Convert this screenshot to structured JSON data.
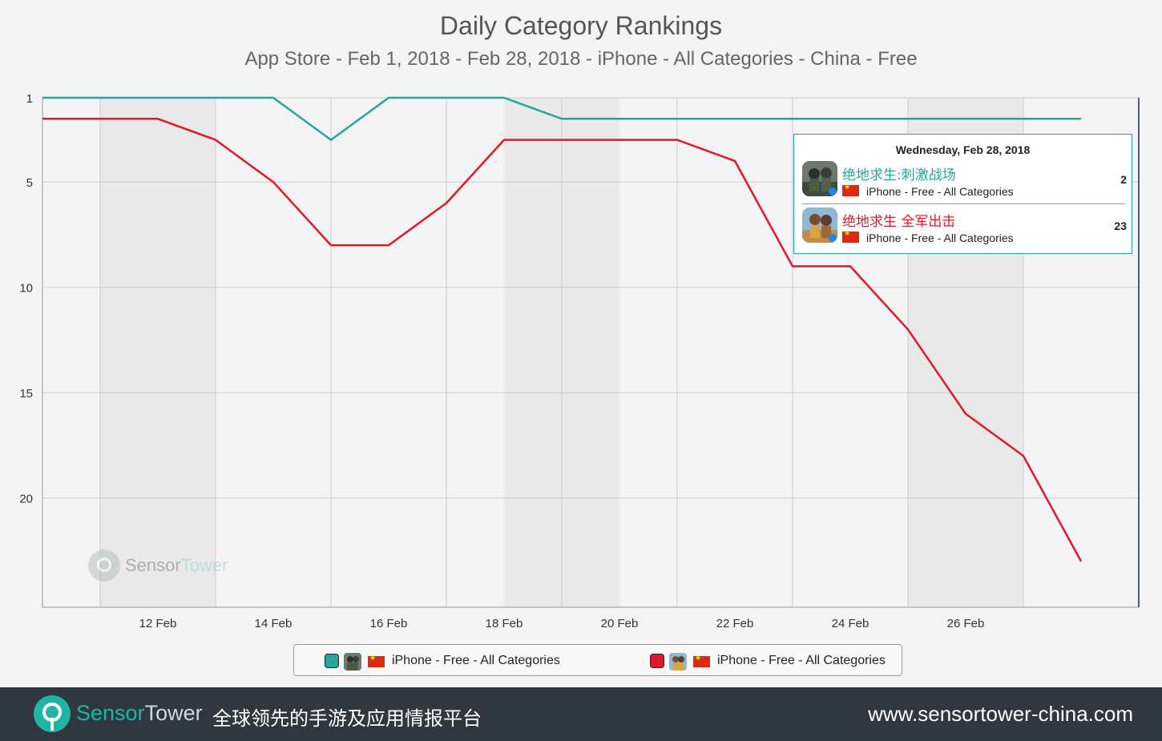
{
  "header": {
    "title": "Daily Category Rankings",
    "subtitle": "App Store - Feb 1, 2018 - Feb 28, 2018 - iPhone - All Categories - China - Free"
  },
  "chart_data": {
    "type": "line",
    "x": [
      "10 Feb",
      "11 Feb",
      "12 Feb",
      "13 Feb",
      "14 Feb",
      "15 Feb",
      "16 Feb",
      "17 Feb",
      "18 Feb",
      "19 Feb",
      "20 Feb",
      "21 Feb",
      "22 Feb",
      "23 Feb",
      "24 Feb",
      "25 Feb",
      "26 Feb",
      "27 Feb",
      "28 Feb"
    ],
    "x_tick_labels": [
      "12 Feb",
      "14 Feb",
      "16 Feb",
      "18 Feb",
      "20 Feb",
      "22 Feb",
      "24 Feb",
      "26 Feb"
    ],
    "y_tick_labels": [
      "1",
      "5",
      "10",
      "15",
      "20"
    ],
    "y_ticks": [
      1,
      5,
      10,
      15,
      20
    ],
    "ylim": [
      24.3,
      1
    ],
    "y_reversed": true,
    "grid": true,
    "series": [
      {
        "app": "绝地求生:刺激战场",
        "color": "#26a69a",
        "values": [
          1,
          1,
          1,
          1,
          1,
          3,
          1,
          1,
          1,
          2,
          2,
          2,
          2,
          2,
          2,
          2,
          2,
          2,
          2
        ]
      },
      {
        "app": "绝地求生 全军出击",
        "color": "#e0182d",
        "values": [
          2,
          2,
          2,
          3,
          5,
          8,
          8,
          6,
          3,
          3,
          3,
          3,
          4,
          9,
          9,
          12,
          16,
          18,
          23
        ]
      }
    ]
  },
  "tooltip": {
    "date": "Wednesday, Feb 28, 2018",
    "rows": [
      {
        "name": "绝地求生:刺激战场",
        "meta": "iPhone - Free - All Categories",
        "rank": "2",
        "color": "#26a69a"
      },
      {
        "name": "绝地求生 全军出击",
        "meta": "iPhone - Free - All Categories",
        "rank": "23",
        "color": "#e0182d"
      }
    ]
  },
  "legend": {
    "items": [
      {
        "label": "iPhone - Free - All Categories",
        "color": "#26a69a"
      },
      {
        "label": "iPhone - Free - All Categories",
        "color": "#e0182d"
      }
    ]
  },
  "watermark": {
    "part1": "Sensor",
    "part2": "Tower"
  },
  "footer": {
    "brand_part1": "Sensor",
    "brand_part2": "Tower",
    "slogan": "全球领先的手游及应用情报平台",
    "url": "www.sensortower-china.com"
  }
}
